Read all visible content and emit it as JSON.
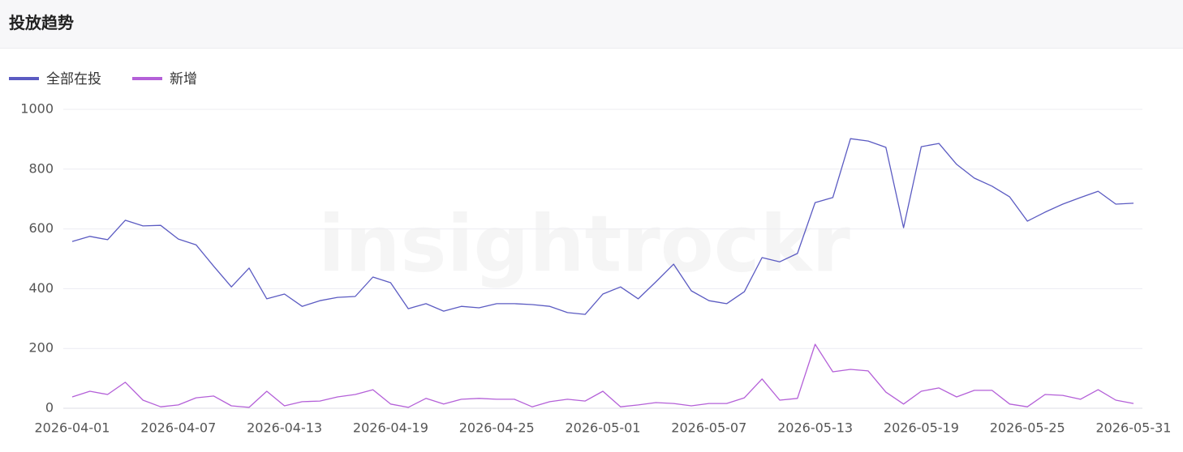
{
  "header": {
    "title": "投放趋势"
  },
  "watermark": "insightrockr",
  "chart_data": {
    "type": "line",
    "categories": [
      "2026-04-01",
      null,
      null,
      null,
      null,
      null,
      "2026-04-07",
      null,
      null,
      null,
      null,
      null,
      "2026-04-13",
      null,
      null,
      null,
      null,
      null,
      "2026-04-19",
      null,
      null,
      null,
      null,
      null,
      "2026-04-25",
      null,
      null,
      null,
      null,
      null,
      "2026-05-01",
      null,
      null,
      null,
      null,
      null,
      "2026-05-07",
      null,
      null,
      null,
      null,
      null,
      "2026-05-13",
      null,
      null,
      null,
      null,
      null,
      "2026-05-19",
      null,
      null,
      null,
      null,
      null,
      "2026-05-25",
      null,
      null,
      null,
      null,
      null,
      "2026-05-31"
    ],
    "series": [
      {
        "name": "全部在投",
        "color": "#5b5bc2",
        "values": [
          558,
          575,
          564,
          629,
          610,
          612,
          566,
          547,
          475,
          406,
          469,
          366,
          382,
          341,
          360,
          371,
          374,
          439,
          420,
          333,
          350,
          325,
          341,
          336,
          350,
          350,
          347,
          341,
          320,
          314,
          382,
          406,
          366,
          423,
          482,
          393,
          360,
          350,
          390,
          504,
          490,
          518,
          688,
          705,
          902,
          894,
          873,
          604,
          875,
          886,
          816,
          770,
          743,
          707,
          626,
          656,
          683,
          705,
          726,
          683,
          686
        ]
      },
      {
        "name": "新增",
        "color": "#b460d8",
        "values": [
          38,
          57,
          46,
          87,
          27,
          5,
          11,
          35,
          41,
          8,
          3,
          57,
          8,
          22,
          24,
          38,
          46,
          62,
          14,
          3,
          33,
          14,
          30,
          33,
          30,
          30,
          5,
          22,
          30,
          24,
          57,
          5,
          11,
          19,
          16,
          8,
          16,
          16,
          35,
          98,
          27,
          33,
          214,
          122,
          130,
          125,
          54,
          14,
          57,
          68,
          38,
          60,
          60,
          14,
          5,
          46,
          43,
          30,
          62,
          27,
          16
        ]
      }
    ],
    "ylim": [
      0,
      1000
    ],
    "yticks": [
      0,
      200,
      400,
      600,
      800,
      1000
    ],
    "grid": true,
    "legend": "top-left"
  }
}
